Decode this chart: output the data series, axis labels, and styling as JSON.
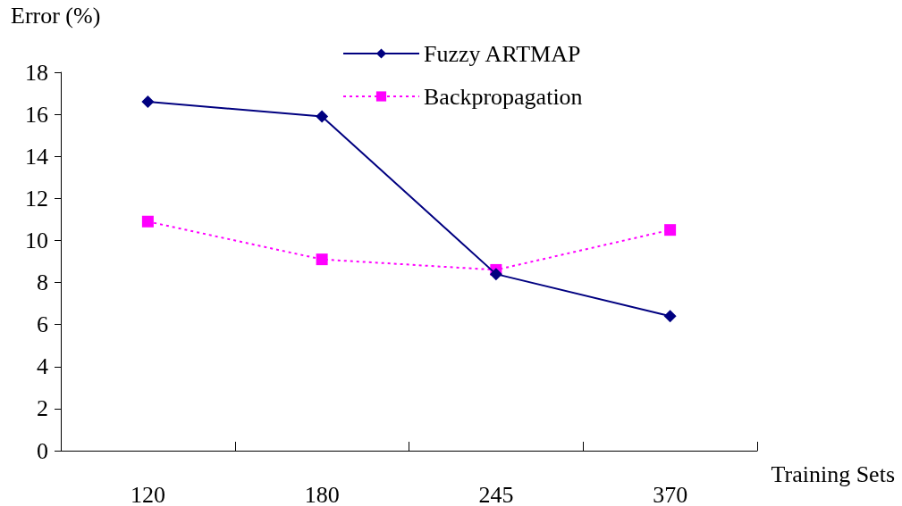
{
  "chart_data": {
    "type": "line",
    "ylabel": "Error (%)",
    "xlabel": "Training Sets",
    "categories": [
      "120",
      "180",
      "245",
      "370"
    ],
    "series": [
      {
        "name": "Fuzzy ARTMAP",
        "color": "#000080",
        "values": [
          16.6,
          15.9,
          8.4,
          6.4
        ],
        "marker": "diamond",
        "line_style": "solid"
      },
      {
        "name": "Backpropagation",
        "color": "#ff00ff",
        "values": [
          10.9,
          9.1,
          8.6,
          10.5
        ],
        "marker": "square",
        "line_style": "dotted"
      }
    ],
    "ylim": [
      0,
      18
    ],
    "yticks": [
      0,
      2,
      4,
      6,
      8,
      10,
      12,
      14,
      16,
      18
    ],
    "grid": false,
    "legend": "top"
  }
}
